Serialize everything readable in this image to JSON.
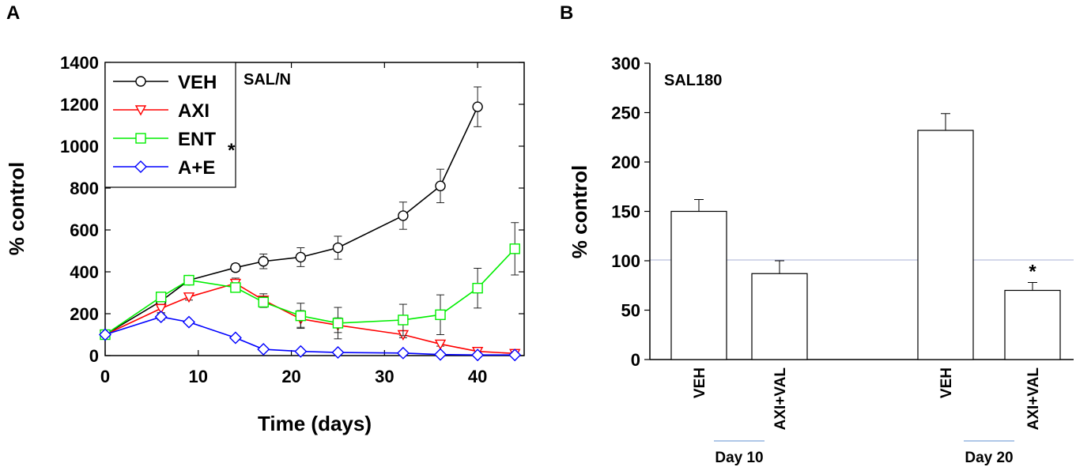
{
  "panel_labels": {
    "a": "A",
    "b": "B"
  },
  "chart_data": [
    {
      "type": "line",
      "panel": "A",
      "annotation": "SAL/N",
      "xlabel": "Time (days)",
      "ylabel": "% control",
      "xlim": [
        0,
        45
      ],
      "ylim": [
        0,
        1400
      ],
      "xticks": [
        0,
        10,
        20,
        30,
        40
      ],
      "yticks": [
        0,
        200,
        400,
        600,
        800,
        1000,
        1200,
        1400
      ],
      "legend_position": "top-left",
      "significance_mark": "*",
      "series": [
        {
          "name": "VEH",
          "color": "#000000",
          "marker": "circle",
          "x": [
            0,
            6,
            9,
            14,
            17,
            21,
            25,
            32,
            36,
            40
          ],
          "y": [
            100,
            260,
            360,
            420,
            450,
            470,
            515,
            668,
            810,
            1188
          ],
          "err": [
            10,
            30,
            20,
            18,
            35,
            45,
            55,
            65,
            80,
            95
          ]
        },
        {
          "name": "AXI",
          "color": "#ff0000",
          "marker": "triangle-down",
          "x": [
            0,
            6,
            9,
            14,
            17,
            21,
            25,
            32,
            36,
            40,
            44
          ],
          "y": [
            100,
            225,
            280,
            345,
            265,
            175,
            145,
            100,
            55,
            20,
            10
          ],
          "err": [
            8,
            20,
            15,
            25,
            30,
            40,
            35,
            15,
            10,
            8,
            5
          ]
        },
        {
          "name": "ENT",
          "color": "#00ee00",
          "marker": "square",
          "x": [
            0,
            6,
            9,
            14,
            17,
            21,
            25,
            32,
            36,
            40,
            44
          ],
          "y": [
            100,
            280,
            360,
            325,
            255,
            190,
            155,
            170,
            195,
            322,
            510
          ],
          "err": [
            8,
            20,
            15,
            20,
            25,
            60,
            75,
            75,
            95,
            95,
            125
          ]
        },
        {
          "name": "A+E",
          "color": "#0000ff",
          "marker": "diamond",
          "x": [
            0,
            6,
            9,
            14,
            17,
            21,
            25,
            32,
            36,
            40,
            44
          ],
          "y": [
            100,
            185,
            160,
            85,
            30,
            20,
            15,
            12,
            5,
            3,
            3
          ],
          "err": [
            5,
            15,
            10,
            8,
            5,
            4,
            3,
            3,
            2,
            2,
            2
          ]
        }
      ]
    },
    {
      "type": "bar",
      "panel": "B",
      "annotation": "SAL180",
      "ylabel": "% control",
      "ylim": [
        0,
        300
      ],
      "yticks": [
        0,
        50,
        100,
        150,
        200,
        250,
        300
      ],
      "reference_line": 100,
      "categories": [
        "VEH",
        "AXI+VAL",
        "VEH",
        "AXI+VAL"
      ],
      "values": [
        150,
        87,
        232,
        70
      ],
      "err": [
        12,
        13,
        17,
        8
      ],
      "significance": [
        "",
        "",
        "",
        "*"
      ],
      "groups": [
        {
          "label": "Day 10",
          "members": [
            0,
            1
          ]
        },
        {
          "label": "Day 20",
          "members": [
            2,
            3
          ]
        }
      ]
    }
  ]
}
